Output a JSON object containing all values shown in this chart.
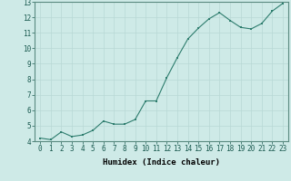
{
  "x": [
    0,
    1,
    2,
    3,
    4,
    5,
    6,
    7,
    8,
    9,
    10,
    11,
    12,
    13,
    14,
    15,
    16,
    17,
    18,
    19,
    20,
    21,
    22,
    23
  ],
  "y": [
    4.2,
    4.1,
    4.6,
    4.3,
    4.4,
    4.7,
    5.3,
    5.1,
    5.1,
    5.4,
    6.6,
    6.6,
    8.1,
    9.4,
    10.6,
    11.3,
    11.9,
    12.3,
    11.8,
    11.35,
    11.25,
    11.6,
    12.4,
    12.9
  ],
  "line_color": "#2e7d6e",
  "marker_color": "#2e7d6e",
  "bg_color": "#ceeae7",
  "grid_color": "#b8d8d5",
  "xlabel": "Humidex (Indice chaleur)",
  "xlim": [
    -0.5,
    23.5
  ],
  "ylim": [
    4,
    13
  ],
  "yticks": [
    4,
    5,
    6,
    7,
    8,
    9,
    10,
    11,
    12,
    13
  ],
  "xticks": [
    0,
    1,
    2,
    3,
    4,
    5,
    6,
    7,
    8,
    9,
    10,
    11,
    12,
    13,
    14,
    15,
    16,
    17,
    18,
    19,
    20,
    21,
    22,
    23
  ],
  "xlabel_fontsize": 6.5,
  "tick_fontsize": 5.5,
  "line_width": 0.8,
  "marker_size": 2.0
}
